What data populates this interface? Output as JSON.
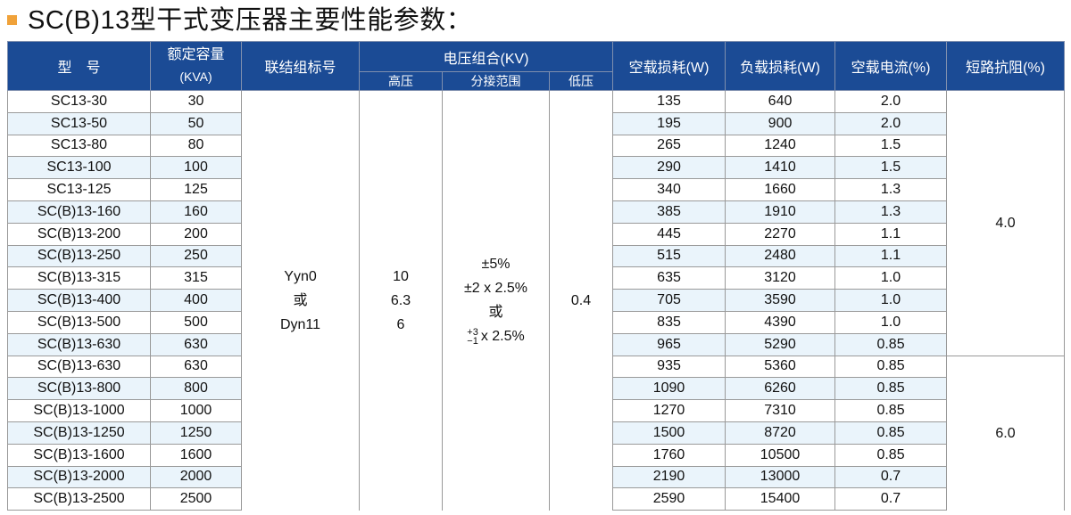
{
  "title": "SC(B)13型干式变压器主要性能参数：",
  "colors": {
    "header_bg": "#1b4b95",
    "alt_row": "#eaf4fb",
    "title_marker": "#f0a23a"
  },
  "headers": {
    "model": "型　号",
    "capacity": "额定容量",
    "capacity_unit": "(KVA)",
    "connection": "联结组标号",
    "voltage": "电压组合(KV)",
    "hv": "高压",
    "tap": "分接范围",
    "lv": "低压",
    "no_load_loss": "空载损耗(W)",
    "load_loss": "负载损耗(W)",
    "no_load_current": "空载电流(%)",
    "impedance": "短路抗阻(%)"
  },
  "merged": {
    "connection": [
      "Yyn0",
      "或",
      "Dyn11"
    ],
    "hv": [
      "10",
      "6.3",
      "6"
    ],
    "tap_line1": "±5%",
    "tap_line2": "±2 x 2.5%",
    "tap_line3": "或",
    "tap_sup": "+3",
    "tap_sub": "−1",
    "tap_line4": "x 2.5%",
    "lv": "0.4",
    "impedance_1": "4.0",
    "impedance_2": "6.0"
  },
  "rows": [
    [
      "SC13-30",
      "30",
      "135",
      "640",
      "2.0"
    ],
    [
      "SC13-50",
      "50",
      "195",
      "900",
      "2.0"
    ],
    [
      "SC13-80",
      "80",
      "265",
      "1240",
      "1.5"
    ],
    [
      "SC13-100",
      "100",
      "290",
      "1410",
      "1.5"
    ],
    [
      "SC13-125",
      "125",
      "340",
      "1660",
      "1.3"
    ],
    [
      "SC(B)13-160",
      "160",
      "385",
      "1910",
      "1.3"
    ],
    [
      "SC(B)13-200",
      "200",
      "445",
      "2270",
      "1.1"
    ],
    [
      "SC(B)13-250",
      "250",
      "515",
      "2480",
      "1.1"
    ],
    [
      "SC(B)13-315",
      "315",
      "635",
      "3120",
      "1.0"
    ],
    [
      "SC(B)13-400",
      "400",
      "705",
      "3590",
      "1.0"
    ],
    [
      "SC(B)13-500",
      "500",
      "835",
      "4390",
      "1.0"
    ],
    [
      "SC(B)13-630",
      "630",
      "965",
      "5290",
      "0.85"
    ],
    [
      "SC(B)13-630",
      "630",
      "935",
      "5360",
      "0.85"
    ],
    [
      "SC(B)13-800",
      "800",
      "1090",
      "6260",
      "0.85"
    ],
    [
      "SC(B)13-1000",
      "1000",
      "1270",
      "7310",
      "0.85"
    ],
    [
      "SC(B)13-1250",
      "1250",
      "1500",
      "8720",
      "0.85"
    ],
    [
      "SC(B)13-1600",
      "1600",
      "1760",
      "10500",
      "0.85"
    ],
    [
      "SC(B)13-2000",
      "2000",
      "2190",
      "13000",
      "0.7"
    ],
    [
      "SC(B)13-2500",
      "2500",
      "2590",
      "15400",
      "0.7"
    ]
  ]
}
